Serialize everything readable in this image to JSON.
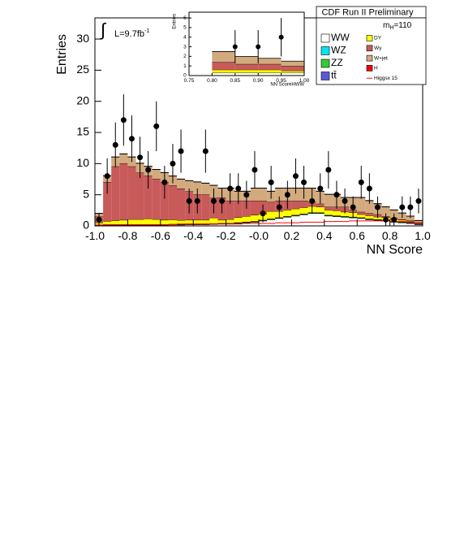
{
  "chart_data": [
    {
      "type": "histogram",
      "title": "CDF Run II Preliminary",
      "x_label": "NN Score",
      "y_label": "Entries",
      "luminosity": {
        "symbol": "∫",
        "text": "L=9.7fb",
        "sup": "-1"
      },
      "mass_label": {
        "text": "m",
        "sub": "H",
        "rest": "=110"
      },
      "xlim": [
        -1,
        1
      ],
      "ylim": [
        0,
        33.4
      ],
      "xticks": [
        {
          "value": -1,
          "label": "-1.0"
        },
        -0.8,
        -0.6,
        -0.4,
        -0.2,
        {
          "value": 0,
          "label": "-0.0"
        },
        0.2,
        0.4,
        0.6,
        0.8,
        {
          "value": 1,
          "label": "1.0"
        }
      ],
      "yticks": [
        0,
        5,
        10,
        15,
        20,
        25,
        30
      ],
      "bins": [
        -1,
        -0.95,
        -0.9,
        -0.85,
        -0.8,
        -0.75,
        -0.7,
        -0.65,
        -0.6,
        -0.55,
        -0.5,
        -0.45,
        -0.4,
        -0.35,
        -0.3,
        -0.25,
        -0.2,
        -0.15,
        -0.1,
        -0.05,
        0,
        0.05,
        0.1,
        0.15,
        0.2,
        0.25,
        0.3,
        0.35,
        0.4,
        0.45,
        0.5,
        0.55,
        0.6,
        0.65,
        0.7,
        0.75,
        0.8,
        0.85,
        0.9,
        0.95,
        1
      ],
      "series": [
        {
          "name": "WW",
          "color": "#ffffff",
          "values": [
            0.05,
            0.1,
            0.1,
            0.1,
            0.1,
            0.1,
            0.1,
            0.1,
            0.1,
            0.15,
            0.15,
            0.2,
            0.2,
            0.2,
            0.25,
            0.3,
            0.3,
            0.4,
            0.5,
            0.6,
            0.8,
            1,
            1.2,
            1.4,
            1.6,
            1.8,
            2,
            2,
            1.6,
            1.5,
            1.4,
            1.3,
            1.2,
            1,
            0.9,
            0.8,
            0.6,
            0.5,
            0.4,
            0.2
          ]
        },
        {
          "name": "WZ",
          "color": "#00e5ee",
          "values": [
            0.05,
            0.05,
            0.05,
            0.05,
            0.05,
            0.05,
            0.05,
            0.05,
            0.05,
            0.05,
            0.05,
            0.05,
            0.05,
            0.05,
            0.05,
            0.05,
            0.05,
            0.05,
            0.05,
            0.05,
            0.05,
            0.05,
            0.05,
            0.05,
            0.05,
            0.05,
            0.05,
            0.05,
            0.05,
            0.05,
            0.05,
            0.05,
            0.05,
            0.05,
            0.05,
            0.05,
            0.05,
            0.05,
            0.05,
            0.05
          ]
        },
        {
          "name": "ZZ",
          "color": "#33cc33",
          "values": [
            0.05,
            0.05,
            0.05,
            0.05,
            0.05,
            0.05,
            0.05,
            0.05,
            0.05,
            0.05,
            0.05,
            0.05,
            0.05,
            0.05,
            0.05,
            0.05,
            0.05,
            0.05,
            0.05,
            0.05,
            0.05,
            0.05,
            0.05,
            0.05,
            0.05,
            0.05,
            0.05,
            0.05,
            0.05,
            0.05,
            0.05,
            0.05,
            0.05,
            0.05,
            0.05,
            0.05,
            0.05,
            0.05,
            0.05,
            0.05
          ]
        },
        {
          "name": "tt̄",
          "color": "#5a5ad8",
          "values": [
            0.05,
            0.05,
            0.05,
            0.05,
            0.05,
            0.05,
            0.05,
            0.05,
            0.05,
            0.05,
            0.05,
            0.05,
            0.05,
            0.05,
            0.05,
            0.05,
            0.05,
            0.05,
            0.05,
            0.05,
            0.05,
            0.05,
            0.05,
            0.05,
            0.05,
            0.05,
            0.05,
            0.05,
            0.05,
            0.05,
            0.05,
            0.05,
            0.05,
            0.05,
            0.05,
            0.05,
            0.05,
            0.05,
            0.05,
            0.05
          ]
        },
        {
          "name": "DY",
          "color": "#ffff00",
          "values": [
            0.3,
            0.5,
            0.6,
            0.7,
            0.8,
            0.8,
            0.9,
            0.8,
            0.7,
            0.7,
            0.6,
            0.6,
            0.6,
            0.6,
            0.9,
            0.5,
            0.6,
            0.8,
            0.9,
            1,
            1,
            1.2,
            1,
            1,
            1,
            1,
            1,
            0.9,
            0.8,
            0.8,
            0.7,
            0.7,
            0.5,
            0.5,
            0.4,
            0.4,
            0.3,
            0.3,
            0.2,
            0.1
          ]
        },
        {
          "name": "Wγ",
          "color": "#c85a5a",
          "values": [
            1.0,
            6.3,
            8.7,
            9.1,
            8.5,
            7.5,
            6.9,
            6.5,
            6.1,
            5.5,
            5.1,
            4.6,
            4.1,
            4.1,
            3.2,
            3.6,
            3.0,
            2.7,
            2.5,
            2.3,
            2.1,
            1.5,
            1.7,
            1.5,
            1.3,
            1.1,
            0.7,
            0.5,
            0.5,
            0.6,
            0.8,
            0.4,
            0.4,
            0.4,
            0.4,
            0.2,
            0.2,
            0.1,
            0.1,
            0
          ]
        },
        {
          "name": "W+jet",
          "color": "#d2aa7d",
          "values": [
            0.5,
            1,
            1.5,
            1.5,
            1.5,
            1.5,
            1.5,
            1.5,
            1.5,
            1.5,
            1.5,
            1.7,
            2,
            1.8,
            2,
            1.5,
            2,
            1.5,
            1.5,
            2,
            2,
            1.7,
            2,
            2,
            2,
            2,
            2.2,
            2,
            2,
            2,
            1.5,
            2,
            2.3,
            2,
            1.7,
            1.5,
            1.3,
            1,
            0.7,
            0.4
          ]
        },
        {
          "name": "H",
          "color": "#ff0000",
          "values": [
            0.03,
            0.03,
            0.03,
            0.03,
            0.03,
            0.03,
            0.03,
            0.03,
            0.03,
            0.03,
            0.03,
            0.03,
            0.03,
            0.03,
            0.03,
            0.03,
            0.03,
            0.03,
            0.03,
            0.03,
            0.03,
            0.03,
            0.03,
            0.03,
            0.03,
            0.03,
            0.03,
            0.03,
            0.03,
            0.03,
            0.03,
            0.03,
            0.03,
            0.03,
            0.03,
            0.03,
            0.03,
            0.03,
            0.03,
            0.03
          ]
        }
      ],
      "signal_line": {
        "name": "Higgsx 15",
        "color": "#ff0000",
        "values": [
          0.1,
          0.2,
          0.2,
          0.2,
          0.2,
          0.2,
          0.2,
          0.2,
          0.2,
          0.2,
          0.3,
          0.3,
          0.3,
          0.3,
          0.3,
          0.3,
          0.3,
          0.3,
          0.4,
          0.4,
          0.4,
          0.4,
          0.5,
          0.5,
          0.5,
          0.6,
          0.6,
          0.6,
          0.7,
          0.7,
          0.7,
          0.8,
          0.8,
          0.8,
          0.8,
          0.8,
          0.7,
          0.7,
          0.6,
          0.5
        ]
      },
      "data_points": {
        "x": [
          -0.975,
          -0.925,
          -0.875,
          -0.825,
          -0.775,
          -0.725,
          -0.675,
          -0.625,
          -0.575,
          -0.525,
          -0.475,
          -0.425,
          -0.375,
          -0.325,
          -0.275,
          -0.225,
          -0.175,
          -0.125,
          -0.075,
          -0.025,
          0.025,
          0.075,
          0.125,
          0.175,
          0.225,
          0.275,
          0.325,
          0.375,
          0.425,
          0.475,
          0.525,
          0.575,
          0.625,
          0.675,
          0.725,
          0.775,
          0.825,
          0.875,
          0.925,
          0.975
        ],
        "values": [
          1,
          8,
          13,
          17,
          14,
          11,
          9,
          16,
          7,
          10,
          12,
          4,
          4,
          12,
          4,
          4,
          6,
          6,
          5,
          9,
          2,
          7,
          3,
          5,
          8,
          7,
          4,
          6,
          9,
          5,
          4,
          3,
          7,
          6,
          3,
          1,
          1,
          3,
          3,
          4
        ]
      }
    },
    {
      "type": "histogram",
      "x_label": "NN ScoreHWW",
      "y_label": "Entries",
      "xlim": [
        0.75,
        1
      ],
      "ylim": [
        0,
        6.6
      ],
      "xticks": [
        0.75,
        {
          "value": 0.8,
          "label": "0.80"
        },
        0.85,
        {
          "value": 0.9,
          "label": "0.90"
        },
        0.95,
        {
          "value": 1,
          "label": "1.00"
        }
      ],
      "yticks": [
        0,
        1,
        2,
        3,
        4,
        5,
        6
      ],
      "bins": [
        0.8,
        0.85,
        0.9,
        0.95,
        1
      ],
      "series": [
        {
          "color": "#ffffff",
          "values": [
            0.3,
            0.3,
            0.3,
            0.3
          ]
        },
        {
          "color": "#ffff00",
          "values": [
            0.3,
            0.3,
            0.3,
            0.2
          ]
        },
        {
          "color": "#c85a5a",
          "values": [
            0.8,
            0.6,
            0.6,
            0.5
          ]
        },
        {
          "color": "#d2aa7d",
          "values": [
            1.1,
            0.8,
            0.6,
            0.5
          ]
        }
      ],
      "data_points": {
        "x": [
          0.85,
          0.9,
          0.95
        ],
        "values": [
          3,
          3,
          4
        ]
      }
    }
  ]
}
